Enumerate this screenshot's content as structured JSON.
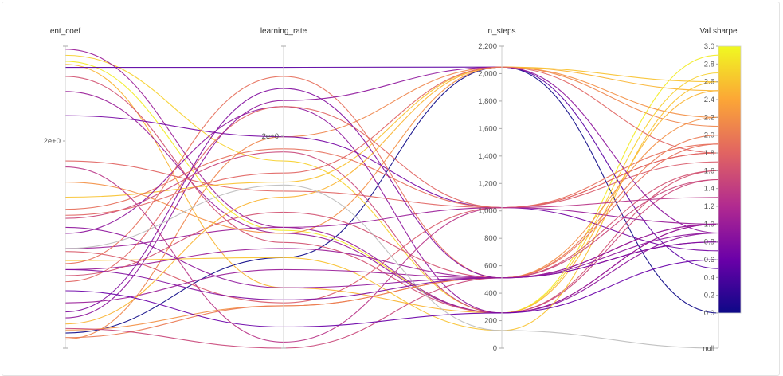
{
  "chart_data": {
    "type": "parallel_coordinates",
    "axes": [
      {
        "name": "ent_coef",
        "label": "ent_coef",
        "ticks": [
          "2e+0"
        ]
      },
      {
        "name": "learning_rate",
        "label": "learning_rate",
        "ticks": [
          "2e+0"
        ]
      },
      {
        "name": "n_steps",
        "label": "n_steps",
        "range": [
          0,
          2200
        ],
        "ticks": [
          "0",
          "200",
          "400",
          "600",
          "800",
          "1,000",
          "1,200",
          "1,400",
          "1,600",
          "1,800",
          "2,000",
          "2,200"
        ]
      },
      {
        "name": "val_sharpe",
        "label": "Val sharpe",
        "range": [
          0,
          3.0
        ],
        "ticks": [
          "0.0",
          "0.2",
          "0.4",
          "0.6",
          "0.8",
          "1.0",
          "1.2",
          "1.4",
          "1.6",
          "1.8",
          "2.0",
          "2.2",
          "2.4",
          "2.6",
          "2.8",
          "3.0"
        ],
        "null_label": "null"
      }
    ],
    "colorscale": {
      "name": "plasma",
      "min": 0,
      "max": 3.0,
      "stops": [
        "#0d0887",
        "#6a00a8",
        "#b12a90",
        "#e16462",
        "#fca636",
        "#f0f921"
      ]
    },
    "runs": [
      {
        "ent_coef": 0.05,
        "learning_rate": 0.3,
        "n_steps": 2048,
        "val_sharpe": 0.0
      },
      {
        "ent_coef": 0.03,
        "learning_rate": 0.7,
        "n_steps": 2048,
        "val_sharpe": 2.1
      },
      {
        "ent_coef": 0.97,
        "learning_rate": 0.62,
        "n_steps": 256,
        "val_sharpe": 2.7
      },
      {
        "ent_coef": 0.95,
        "learning_rate": 0.39,
        "n_steps": 256,
        "val_sharpe": 2.9
      },
      {
        "ent_coef": 0.94,
        "learning_rate": 0.2,
        "n_steps": 256,
        "val_sharpe": 2.5
      },
      {
        "ent_coef": 0.93,
        "learning_rate": 0.93,
        "n_steps": 2048,
        "val_sharpe": 0.5
      },
      {
        "ent_coef": 0.99,
        "learning_rate": 0.4,
        "n_steps": 256,
        "val_sharpe": 1.0
      },
      {
        "ent_coef": 0.85,
        "learning_rate": 0.38,
        "n_steps": 256,
        "val_sharpe": 1.0
      },
      {
        "ent_coef": 0.9,
        "learning_rate": 0.35,
        "n_steps": 256,
        "val_sharpe": 1.6
      },
      {
        "ent_coef": 0.77,
        "learning_rate": 0.7,
        "n_steps": 1024,
        "val_sharpe": 0.7
      },
      {
        "ent_coef": 0.62,
        "learning_rate": 0.52,
        "n_steps": 1024,
        "val_sharpe": 1.8
      },
      {
        "ent_coef": 0.55,
        "learning_rate": 0.38,
        "n_steps": 2048,
        "val_sharpe": 2.2
      },
      {
        "ent_coef": 0.5,
        "learning_rate": 0.55,
        "n_steps": 2048,
        "val_sharpe": 2.6
      },
      {
        "ent_coef": 0.46,
        "learning_rate": 0.66,
        "n_steps": 1024,
        "val_sharpe": 1.9
      },
      {
        "ent_coef": 0.43,
        "learning_rate": 0.65,
        "n_steps": 256,
        "val_sharpe": 1.5
      },
      {
        "ent_coef": 0.38,
        "learning_rate": 0.8,
        "n_steps": 256,
        "val_sharpe": 0.9
      },
      {
        "ent_coef": 0.32,
        "learning_rate": 0.15,
        "n_steps": 1024,
        "val_sharpe": 1.7
      },
      {
        "ent_coef": 0.29,
        "learning_rate": 0.3,
        "n_steps": 128,
        "val_sharpe": 2.6
      },
      {
        "ent_coef": 0.33,
        "learning_rate": 0.4,
        "n_steps": 1024,
        "val_sharpe": 1.0
      },
      {
        "ent_coef": 0.26,
        "learning_rate": 0.33,
        "n_steps": 512,
        "val_sharpe": 1.0
      },
      {
        "ent_coef": 0.24,
        "learning_rate": 0.45,
        "n_steps": 512,
        "val_sharpe": 1.6
      },
      {
        "ent_coef": 0.22,
        "learning_rate": 0.8,
        "n_steps": 1024,
        "val_sharpe": 1.8
      },
      {
        "ent_coef": 0.28,
        "learning_rate": 0.9,
        "n_steps": 512,
        "val_sharpe": 1.9
      },
      {
        "ent_coef": 0.12,
        "learning_rate": 0.86,
        "n_steps": 512,
        "val_sharpe": 0.8
      },
      {
        "ent_coef": 0.15,
        "learning_rate": 0.26,
        "n_steps": 512,
        "val_sharpe": 1.0
      },
      {
        "ent_coef": 0.1,
        "learning_rate": 0.82,
        "n_steps": 2048,
        "val_sharpe": 0.9
      },
      {
        "ent_coef": 0.08,
        "learning_rate": 0.5,
        "n_steps": 2048,
        "val_sharpe": 2.5
      },
      {
        "ent_coef": 0.06,
        "learning_rate": 0.14,
        "n_steps": 512,
        "val_sharpe": 2.2
      },
      {
        "ent_coef": 0.035,
        "learning_rate": 0.14,
        "n_steps": 512,
        "val_sharpe": 2.0
      },
      {
        "ent_coef": 0.065,
        "learning_rate": 0.0,
        "n_steps": 512,
        "val_sharpe": 1.5
      },
      {
        "ent_coef": 0.6,
        "learning_rate": 0.02,
        "n_steps": 1024,
        "val_sharpe": 1.3
      },
      {
        "ent_coef": 0.19,
        "learning_rate": 0.07,
        "n_steps": 256,
        "val_sharpe": 0.6
      },
      {
        "ent_coef": 0.44,
        "learning_rate": 0.58,
        "n_steps": 2048,
        "val_sharpe": 1.8
      },
      {
        "ent_coef": 0.26,
        "learning_rate": 0.16,
        "n_steps": 512,
        "val_sharpe": 0.8
      },
      {
        "ent_coef": 0.4,
        "learning_rate": 0.2,
        "n_steps": 512,
        "val_sharpe": 0.9
      },
      {
        "ent_coef": 0.33,
        "learning_rate": 0.54,
        "n_steps": 128,
        "val_sharpe": null
      }
    ]
  }
}
